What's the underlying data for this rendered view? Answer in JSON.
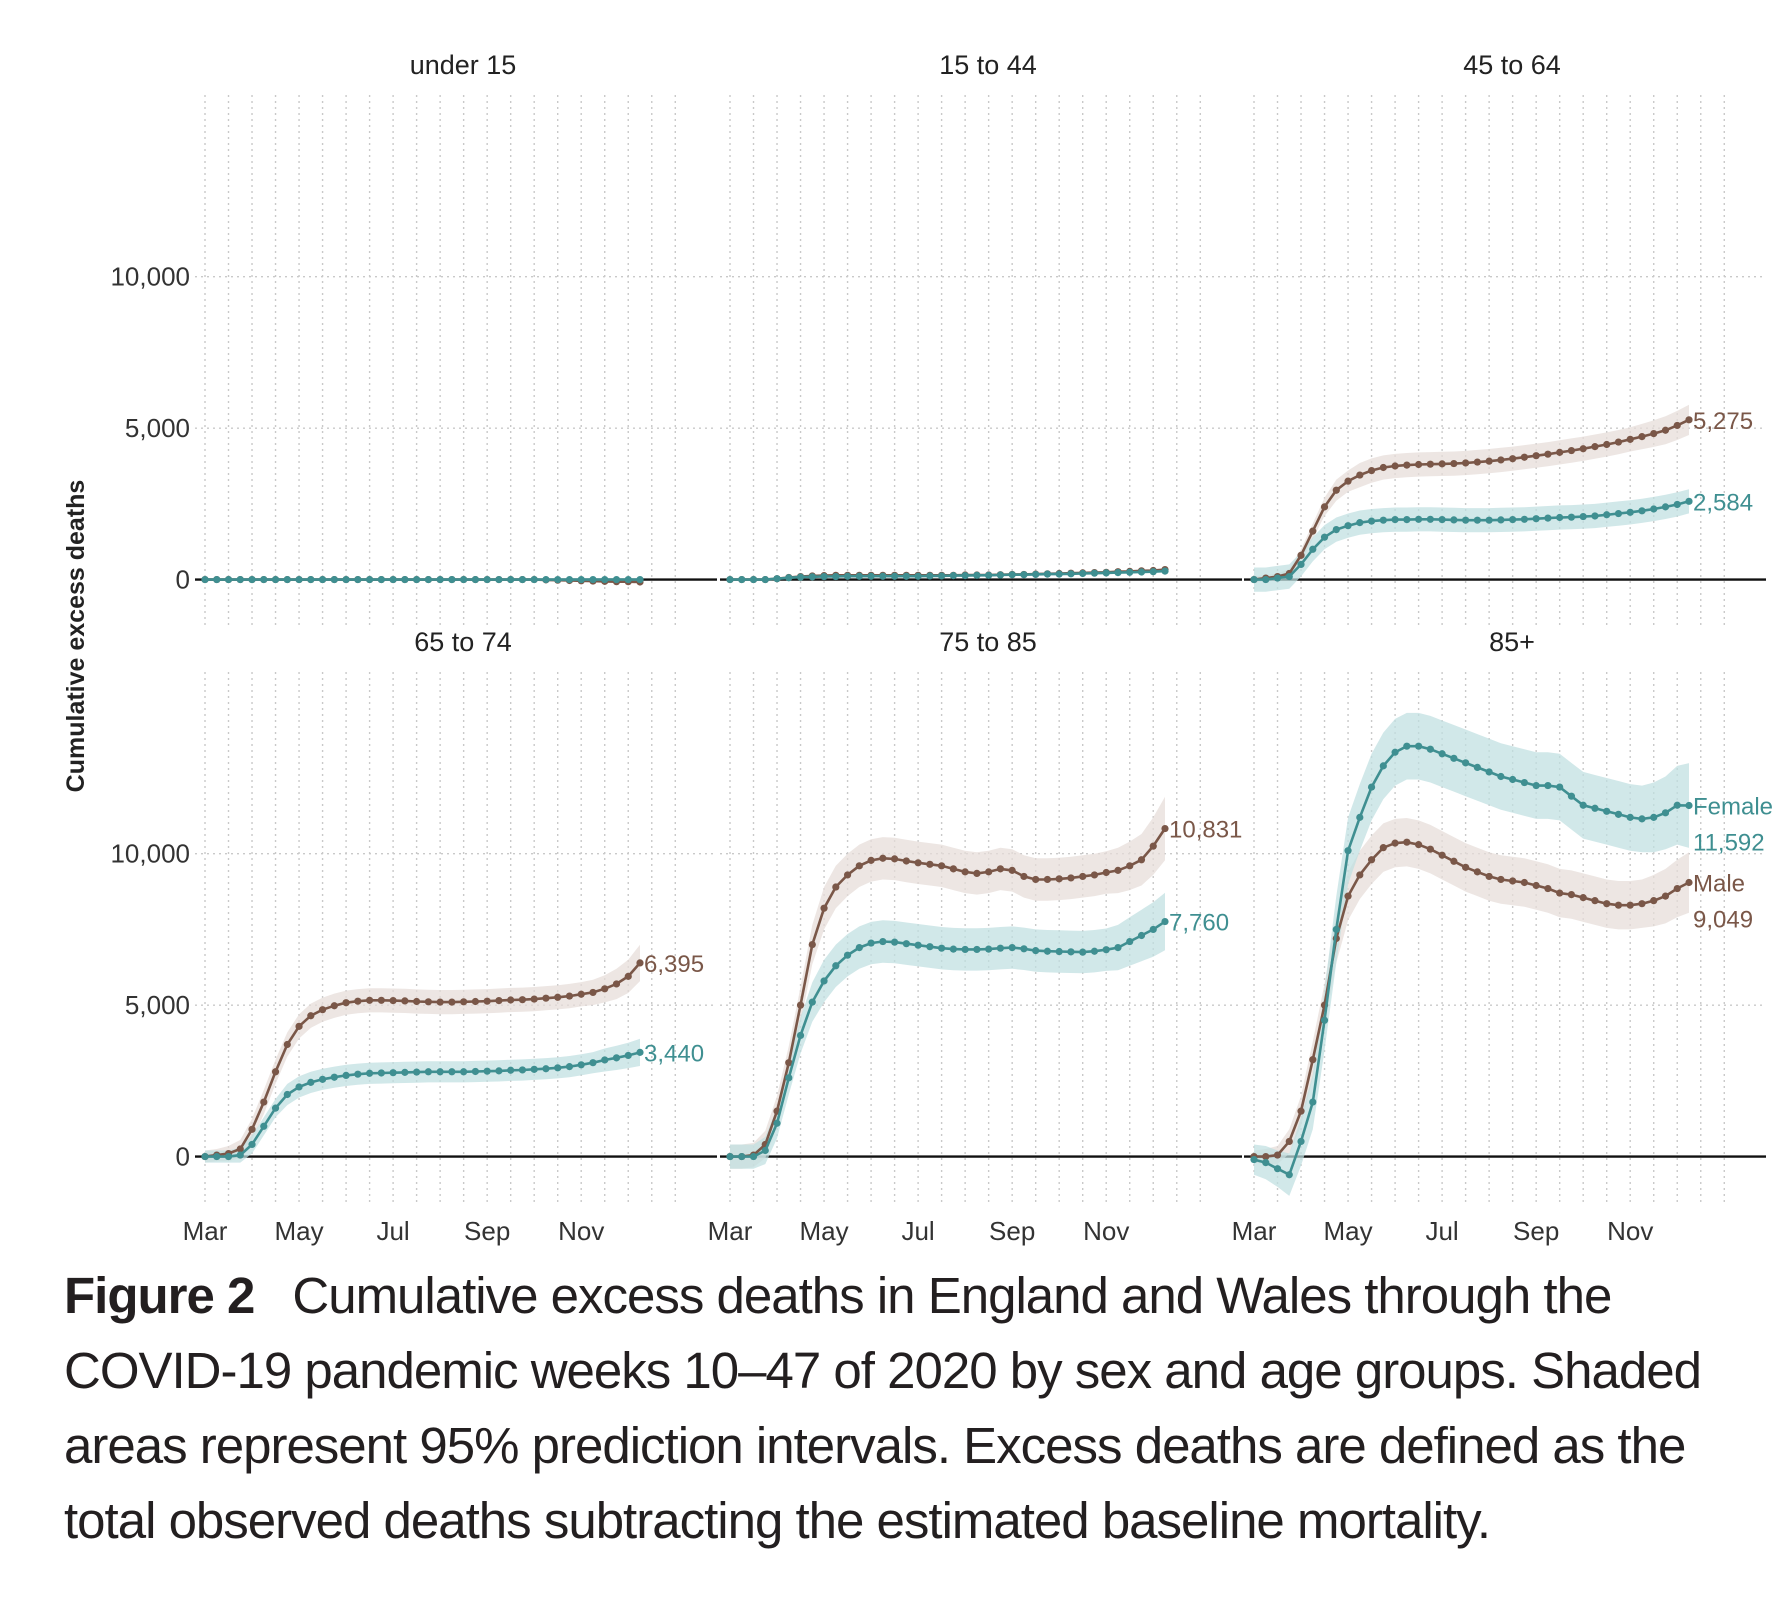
{
  "chart_data": {
    "type": "line",
    "ylabel": "Cumulative excess deaths",
    "y_ticks": [
      0,
      5000,
      10000
    ],
    "y_tick_labels": [
      "0",
      "5,000",
      "10,000"
    ],
    "x_tick_labels": [
      "Mar",
      "May",
      "Jul",
      "Sep",
      "Nov"
    ],
    "x_ticks_week": [
      10,
      18,
      26,
      34,
      42
    ],
    "weeks": [
      10,
      47
    ],
    "grid": true,
    "colors": {
      "Female": "#3f8f91",
      "Male": "#7a5748"
    },
    "band_colors": {
      "Female": "#bfdfe0",
      "Male": "#e6dcd8"
    },
    "facets": [
      {
        "title": "under 15",
        "ylim": [
          -1500,
          16000
        ],
        "series": [
          {
            "sex": "Female",
            "values": [
              0,
              0,
              0,
              0,
              0,
              0,
              0,
              0,
              0,
              0,
              0,
              0,
              0,
              0,
              0,
              0,
              0,
              0,
              0,
              0,
              0,
              0,
              0,
              0,
              0,
              0,
              0,
              0,
              0,
              0,
              0,
              0,
              0,
              0,
              0,
              0,
              0,
              0
            ]
          },
          {
            "sex": "Male",
            "values": [
              0,
              0,
              0,
              0,
              0,
              0,
              0,
              0,
              0,
              0,
              0,
              0,
              0,
              0,
              0,
              0,
              0,
              0,
              0,
              0,
              0,
              0,
              0,
              0,
              0,
              0,
              0,
              0,
              0,
              -10,
              -20,
              -30,
              -40,
              -50,
              -60,
              -70,
              -70,
              -80
            ]
          }
        ]
      },
      {
        "title": "15 to 44",
        "ylim": [
          -1500,
          16000
        ],
        "series": [
          {
            "sex": "Female",
            "values": [
              0,
              0,
              0,
              0,
              30,
              60,
              80,
              90,
              100,
              100,
              110,
              110,
              110,
              110,
              110,
              110,
              110,
              120,
              120,
              130,
              130,
              140,
              140,
              150,
              160,
              160,
              170,
              180,
              180,
              190,
              200,
              210,
              220,
              230,
              240,
              250,
              260,
              280
            ]
          },
          {
            "sex": "Male",
            "values": [
              0,
              0,
              0,
              0,
              30,
              70,
              100,
              120,
              130,
              140,
              140,
              140,
              140,
              140,
              140,
              140,
              140,
              140,
              140,
              140,
              150,
              150,
              150,
              160,
              170,
              170,
              180,
              190,
              200,
              210,
              220,
              230,
              240,
              260,
              270,
              290,
              300,
              330
            ]
          }
        ]
      },
      {
        "title": "45 to 64",
        "ylim": [
          -1500,
          16000
        ],
        "series": [
          {
            "sex": "Female",
            "values": [
              0,
              0,
              50,
              100,
              500,
              1000,
              1400,
              1650,
              1780,
              1880,
              1930,
              1960,
              1980,
              1980,
              1990,
              1990,
              1980,
              1970,
              1960,
              1960,
              1960,
              1970,
              1980,
              1990,
              2010,
              2030,
              2050,
              2060,
              2080,
              2100,
              2140,
              2180,
              2220,
              2270,
              2330,
              2400,
              2480,
              2584
            ],
            "ci": [
              400,
              400,
              400,
              400,
              400,
              400,
              400,
              400,
              400,
              400,
              400,
              400,
              400,
              400,
              400,
              400,
              400,
              400,
              400,
              400,
              400,
              400,
              400,
              400,
              400,
              400,
              400,
              400,
              400,
              400,
              400,
              400,
              400,
              400,
              400,
              400,
              400,
              400
            ]
          },
          {
            "sex": "Male",
            "values": [
              0,
              50,
              100,
              200,
              800,
              1600,
              2400,
              2950,
              3250,
              3450,
              3600,
              3700,
              3750,
              3780,
              3800,
              3810,
              3820,
              3830,
              3850,
              3880,
              3910,
              3950,
              3990,
              4040,
              4090,
              4140,
              4200,
              4260,
              4320,
              4390,
              4460,
              4540,
              4630,
              4720,
              4820,
              4930,
              5090,
              5275
            ],
            "ci": [
              100,
              100,
              100,
              150,
              200,
              250,
              300,
              350,
              350,
              400,
              400,
              400,
              400,
              400,
              400,
              400,
              400,
              400,
              400,
              400,
              400,
              400,
              400,
              400,
              400,
              400,
              400,
              400,
              400,
              400,
              400,
              400,
              400,
              420,
              440,
              460,
              480,
              500
            ]
          }
        ]
      },
      {
        "title": "65 to 74",
        "ylim": [
          -1500,
          16000
        ],
        "series": [
          {
            "sex": "Female",
            "values": [
              0,
              0,
              0,
              50,
              400,
              1000,
              1600,
              2050,
              2300,
              2450,
              2550,
              2620,
              2680,
              2720,
              2750,
              2760,
              2770,
              2780,
              2790,
              2800,
              2800,
              2800,
              2800,
              2810,
              2820,
              2830,
              2850,
              2860,
              2880,
              2900,
              2930,
              2970,
              3030,
              3100,
              3190,
              3260,
              3340,
              3440
            ],
            "ci": [
              200,
              200,
              200,
              250,
              300,
              300,
              300,
              350,
              350,
              350,
              350,
              350,
              350,
              350,
              350,
              350,
              350,
              350,
              350,
              350,
              350,
              350,
              350,
              350,
              350,
              350,
              350,
              350,
              350,
              350,
              350,
              350,
              350,
              350,
              380,
              400,
              420,
              450
            ]
          },
          {
            "sex": "Male",
            "values": [
              0,
              50,
              100,
              250,
              900,
              1800,
              2800,
              3700,
              4300,
              4650,
              4850,
              4980,
              5080,
              5130,
              5160,
              5160,
              5150,
              5140,
              5120,
              5110,
              5100,
              5100,
              5110,
              5120,
              5130,
              5150,
              5170,
              5180,
              5200,
              5230,
              5260,
              5300,
              5360,
              5420,
              5540,
              5700,
              5950,
              6395
            ],
            "ci": [
              200,
              200,
              250,
              300,
              350,
              400,
              400,
              400,
              400,
              400,
              400,
              400,
              400,
              400,
              400,
              400,
              400,
              400,
              400,
              400,
              400,
              400,
              400,
              400,
              400,
              400,
              400,
              400,
              400,
              400,
              400,
              400,
              400,
              420,
              450,
              500,
              550,
              600
            ]
          }
        ]
      },
      {
        "title": "75 to 85",
        "ylim": [
          -1500,
          16000
        ],
        "series": [
          {
            "sex": "Female",
            "values": [
              0,
              0,
              0,
              200,
              1100,
              2600,
              4000,
              5100,
              5800,
              6300,
              6650,
              6900,
              7050,
              7100,
              7080,
              7030,
              6980,
              6930,
              6880,
              6850,
              6840,
              6840,
              6850,
              6880,
              6900,
              6860,
              6800,
              6780,
              6770,
              6760,
              6750,
              6780,
              6830,
              6900,
              7100,
              7300,
              7500,
              7760
            ],
            "ci": [
              400,
              400,
              400,
              450,
              500,
              550,
              600,
              650,
              700,
              700,
              700,
              700,
              700,
              700,
              700,
              700,
              700,
              700,
              700,
              700,
              700,
              700,
              700,
              700,
              700,
              700,
              700,
              700,
              700,
              700,
              700,
              700,
              700,
              750,
              800,
              850,
              900,
              950
            ]
          },
          {
            "sex": "Male",
            "values": [
              0,
              0,
              50,
              400,
              1500,
              3100,
              5000,
              7000,
              8200,
              8900,
              9300,
              9600,
              9780,
              9850,
              9830,
              9760,
              9700,
              9650,
              9600,
              9500,
              9400,
              9350,
              9400,
              9500,
              9450,
              9250,
              9150,
              9150,
              9170,
              9200,
              9250,
              9300,
              9380,
              9450,
              9600,
              9800,
              10250,
              10831
            ],
            "ci": [
              400,
              400,
              400,
              450,
              500,
              550,
              600,
              650,
              700,
              700,
              700,
              700,
              700,
              700,
              700,
              700,
              700,
              700,
              700,
              700,
              700,
              700,
              700,
              700,
              700,
              700,
              700,
              700,
              700,
              700,
              700,
              700,
              700,
              750,
              800,
              850,
              950,
              1050
            ]
          }
        ]
      },
      {
        "title": "85+",
        "ylim": [
          -1500,
          16000
        ],
        "series": [
          {
            "sex": "Female",
            "values": [
              -100,
              -200,
              -400,
              -600,
              500,
              1800,
              4500,
              7500,
              10100,
              11200,
              12200,
              12900,
              13350,
              13550,
              13550,
              13450,
              13300,
              13150,
              13000,
              12850,
              12700,
              12550,
              12450,
              12350,
              12250,
              12250,
              12200,
              11900,
              11600,
              11500,
              11400,
              11300,
              11200,
              11150,
              11200,
              11350,
              11600,
              11592
            ],
            "ci": [
              500,
              550,
              600,
              700,
              800,
              900,
              1000,
              1100,
              1100,
              1100,
              1100,
              1100,
              1100,
              1100,
              1100,
              1100,
              1100,
              1100,
              1100,
              1100,
              1100,
              1100,
              1100,
              1100,
              1100,
              1100,
              1100,
              1100,
              1100,
              1100,
              1100,
              1100,
              1100,
              1100,
              1150,
              1200,
              1300,
              1400
            ]
          },
          {
            "sex": "Male",
            "values": [
              0,
              0,
              50,
              500,
              1500,
              3200,
              5000,
              7200,
              8600,
              9300,
              9800,
              10200,
              10350,
              10380,
              10300,
              10150,
              9950,
              9750,
              9550,
              9400,
              9250,
              9150,
              9100,
              9050,
              8950,
              8850,
              8700,
              8650,
              8550,
              8450,
              8350,
              8300,
              8300,
              8350,
              8450,
              8600,
              8850,
              9049
            ],
            "ci": [
              200,
              250,
              300,
              400,
              500,
              600,
              700,
              800,
              800,
              800,
              800,
              800,
              800,
              800,
              800,
              800,
              800,
              800,
              800,
              800,
              800,
              800,
              800,
              800,
              800,
              800,
              800,
              800,
              800,
              800,
              800,
              800,
              800,
              800,
              850,
              900,
              950,
              1000
            ]
          }
        ]
      }
    ],
    "end_labels": [
      {
        "facet": 2,
        "sex": "Male",
        "text": "5,275"
      },
      {
        "facet": 2,
        "sex": "Female",
        "text": "2,584"
      },
      {
        "facet": 3,
        "sex": "Male",
        "text": "6,395"
      },
      {
        "facet": 3,
        "sex": "Female",
        "text": "3,440"
      },
      {
        "facet": 4,
        "sex": "Male",
        "text": "10,831"
      },
      {
        "facet": 4,
        "sex": "Female",
        "text": "7,760"
      },
      {
        "facet": 5,
        "sex": "Female",
        "text": "Female",
        "value_text": "11,592"
      },
      {
        "facet": 5,
        "sex": "Male",
        "text": "Male",
        "value_text": "9,049"
      }
    ]
  },
  "caption": {
    "lead": "Figure 2",
    "text": "Cumulative excess deaths in England and Wales through the COVID-19 pandemic weeks 10–47 of 2020 by sex and age groups. Shaded areas represent 95% prediction intervals. Excess deaths are defined as the total observed deaths subtracting the estimated baseline mortality."
  }
}
